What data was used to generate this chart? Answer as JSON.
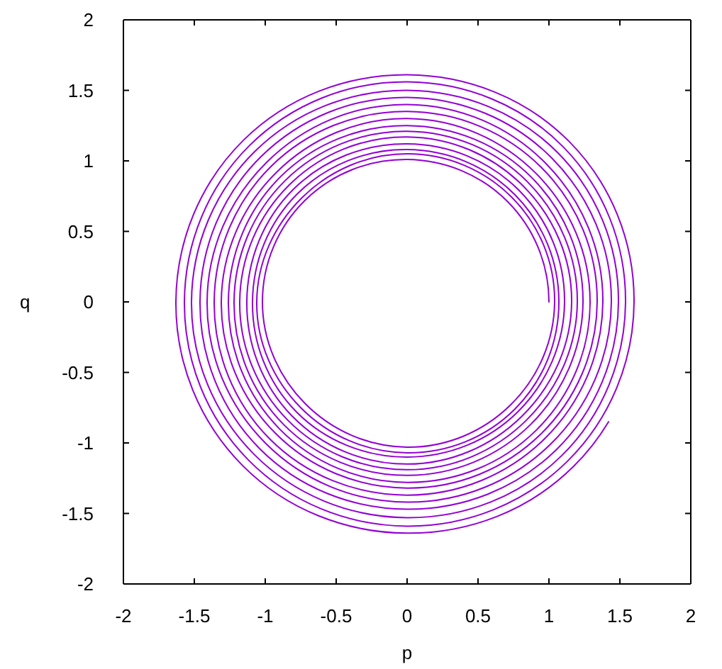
{
  "chart_data": {
    "type": "line",
    "xlabel": "p",
    "ylabel": "q",
    "color": "#9400d3",
    "x": [
      1,
      0.71,
      0,
      -0.72,
      -1.02,
      -0.72,
      0,
      0.73,
      1.04,
      0.74,
      0,
      -0.74,
      -1.06,
      -0.75,
      0,
      0.76,
      1.07,
      0.76,
      0,
      -0.77,
      -1.09,
      -0.78,
      0,
      0.78,
      1.11,
      0.79,
      0,
      -0.8,
      -1.13,
      -0.81,
      0,
      0.81,
      1.16,
      0.82,
      0,
      -0.83,
      -1.18,
      -0.84,
      0,
      0.84,
      1.2,
      0.85,
      0,
      -0.86,
      -1.22,
      -0.87,
      0,
      0.87,
      1.24,
      0.88,
      0,
      -0.89,
      -1.26,
      -0.9,
      0,
      0.91,
      1.29,
      0.91,
      0,
      -0.92,
      -1.31,
      -0.93,
      0,
      0.94,
      1.34,
      0.95,
      0,
      -0.96,
      -1.36,
      -0.97,
      0,
      0.97,
      1.38,
      0.98,
      0,
      -0.99,
      -1.41,
      -1,
      0,
      1.01,
      1.44,
      1.02,
      0,
      -1.03,
      -1.46,
      -1.04,
      0,
      1.05,
      1.49,
      1.06,
      0,
      -1.07,
      -1.52,
      -1.08,
      0,
      1.09,
      1.54,
      1.1,
      0,
      -1.11,
      -1.57,
      -1.12,
      0,
      1.13,
      1.6,
      1.14,
      0,
      -1.15,
      -1.63,
      -1.16,
      0,
      1.17,
      1.42
    ],
    "values": [
      0,
      0.71,
      1.01,
      0.72,
      0,
      -0.72,
      -1.03,
      -0.73,
      0,
      0.74,
      1.05,
      0.74,
      0,
      -0.75,
      -1.07,
      -0.76,
      0,
      0.76,
      1.08,
      0.77,
      0,
      -0.78,
      -1.1,
      -0.78,
      0,
      0.79,
      1.12,
      0.8,
      0,
      -0.81,
      -1.15,
      -0.81,
      0,
      0.82,
      1.17,
      0.83,
      0,
      -0.84,
      -1.19,
      -0.84,
      0,
      0.85,
      1.21,
      0.86,
      0,
      -0.87,
      -1.23,
      -0.87,
      0,
      0.88,
      1.25,
      0.89,
      0,
      -0.9,
      -1.28,
      -0.91,
      0,
      0.91,
      1.3,
      0.92,
      0,
      -0.93,
      -1.32,
      -0.94,
      0,
      0.95,
      1.35,
      0.96,
      0,
      -0.97,
      -1.37,
      -0.97,
      0,
      0.98,
      1.4,
      0.99,
      0,
      -1,
      -1.42,
      -1.01,
      0,
      1.02,
      1.45,
      1.03,
      0,
      -1.04,
      -1.47,
      -1.05,
      0,
      1.06,
      1.5,
      1.07,
      0,
      -1.08,
      -1.53,
      -1.09,
      0,
      1.1,
      1.56,
      1.11,
      0,
      -1.12,
      -1.59,
      -1.13,
      0,
      1.14,
      1.61,
      1.15,
      0,
      -1.16,
      -1.64,
      -1.17,
      -0.85
    ],
    "xlim": [
      -2,
      2
    ],
    "ylim": [
      -2,
      2
    ],
    "xticks": [
      -2,
      -1.5,
      -1,
      -0.5,
      0,
      0.5,
      1,
      1.5,
      2
    ],
    "yticks": [
      -2,
      -1.5,
      -1,
      -0.5,
      0,
      0.5,
      1,
      1.5,
      2
    ]
  }
}
